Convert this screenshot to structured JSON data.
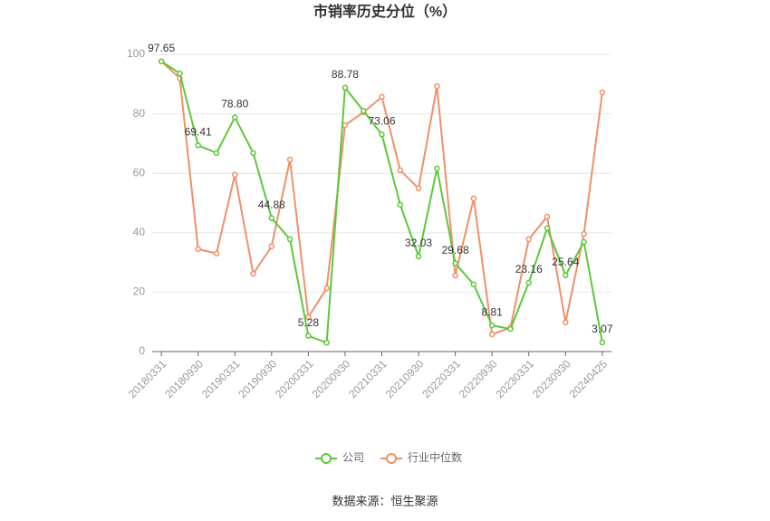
{
  "chart_data": {
    "type": "line",
    "title": "市销率历史分位（%）",
    "categories": [
      "20180331",
      null,
      "20180930",
      null,
      "20190331",
      null,
      "20190930",
      null,
      "20200331",
      null,
      "20200930",
      null,
      "20210331",
      null,
      "20210930",
      null,
      "20220331",
      null,
      "20220930",
      null,
      "20230331",
      null,
      "20230930",
      null,
      "20240425"
    ],
    "series": [
      {
        "name": "公司",
        "color": "#5cc83a",
        "values": [
          97.65,
          93.6,
          69.41,
          66.8,
          78.8,
          66.8,
          44.88,
          37.8,
          5.28,
          3.0,
          88.78,
          81.0,
          73.06,
          49.4,
          32.03,
          61.6,
          29.68,
          22.6,
          8.81,
          7.6,
          23.16,
          41.5,
          25.64,
          36.9,
          3.07
        ],
        "value_labels": [
          "97.65",
          null,
          "69.41",
          null,
          "78.80",
          null,
          "44.88",
          null,
          "5.28",
          null,
          "88.78",
          null,
          "73.06",
          null,
          "32.03",
          null,
          "29.68",
          null,
          "8.81",
          null,
          "23.16",
          null,
          "25.64",
          null,
          "3.07"
        ]
      },
      {
        "name": "行业中位数",
        "color": "#f0906a",
        "values": [
          97.65,
          92.0,
          34.5,
          33.0,
          59.5,
          26.2,
          35.4,
          64.6,
          11.6,
          21.3,
          76.2,
          80.5,
          85.7,
          61.0,
          54.9,
          89.3,
          25.6,
          51.5,
          5.8,
          8.0,
          37.8,
          45.4,
          9.8,
          39.6,
          87.2
        ]
      }
    ],
    "ylim": [
      0,
      100
    ],
    "yticks": [
      0,
      20,
      40,
      60,
      80,
      100
    ],
    "grid": true,
    "legend": "bottom",
    "source": "数据来源：恒生聚源"
  }
}
